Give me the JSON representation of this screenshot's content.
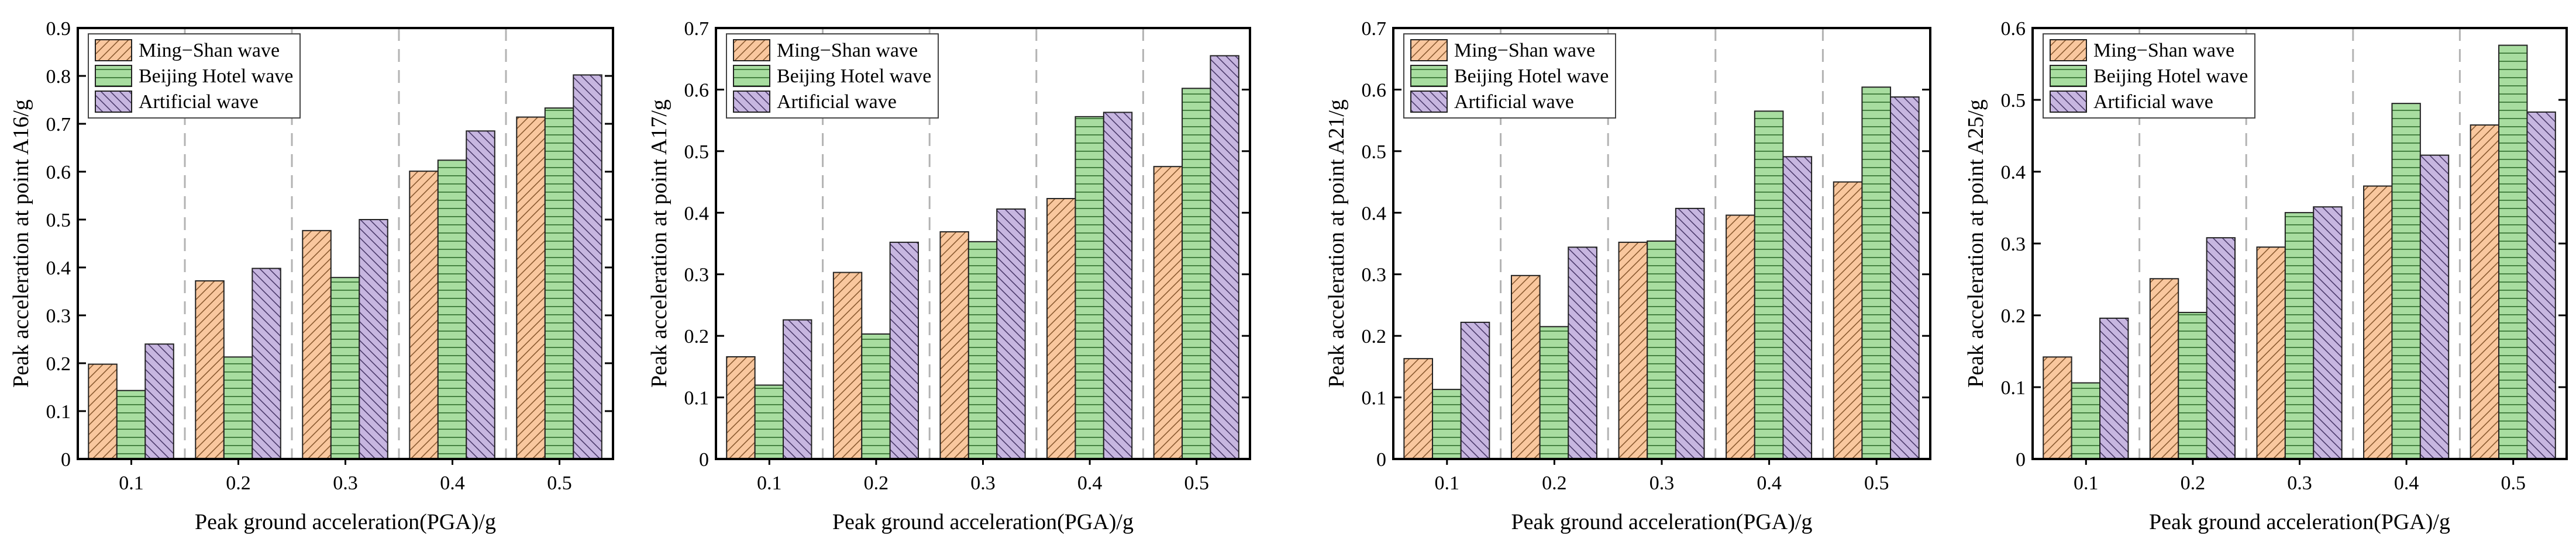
{
  "figure": {
    "description_panels": 4
  },
  "series_styles": [
    {
      "name": "Ming−Shan wave",
      "fill": "#F9C79E",
      "hatch": "diagonal-up"
    },
    {
      "name": "Beijing Hotel wave",
      "fill": "#A8DDA0",
      "hatch": "horizontal"
    },
    {
      "name": "Artificial wave",
      "fill": "#C7B6E0",
      "hatch": "diagonal-down"
    }
  ],
  "chart_data": [
    {
      "type": "bar",
      "title": "",
      "xlabel": "Peak ground acceleration(PGA)/g",
      "ylabel": "Peak acceleration at point A16/g",
      "categories": [
        "0.1",
        "0.2",
        "0.3",
        "0.4",
        "0.5"
      ],
      "ylim": [
        0,
        0.9
      ],
      "yticks": [
        "0",
        "0.1",
        "0.2",
        "0.3",
        "0.4",
        "0.5",
        "0.6",
        "0.7",
        "0.8",
        "0.9"
      ],
      "legend": "top-left",
      "series": [
        {
          "name": "Ming−Shan wave",
          "values": [
            0.198,
            0.372,
            0.477,
            0.601,
            0.714
          ]
        },
        {
          "name": "Beijing Hotel wave",
          "values": [
            0.143,
            0.213,
            0.379,
            0.624,
            0.733
          ]
        },
        {
          "name": "Artificial wave",
          "values": [
            0.24,
            0.398,
            0.5,
            0.685,
            0.802
          ]
        }
      ]
    },
    {
      "type": "bar",
      "title": "",
      "xlabel": "Peak ground acceleration(PGA)/g",
      "ylabel": "Peak acceleration at point A17/g",
      "categories": [
        "0.1",
        "0.2",
        "0.3",
        "0.4",
        "0.5"
      ],
      "ylim": [
        0,
        0.7
      ],
      "yticks": [
        "0",
        "0.1",
        "0.2",
        "0.3",
        "0.4",
        "0.5",
        "0.6",
        "0.7"
      ],
      "legend": "top-left",
      "series": [
        {
          "name": "Ming−Shan wave",
          "values": [
            0.166,
            0.303,
            0.369,
            0.423,
            0.475
          ]
        },
        {
          "name": "Beijing Hotel wave",
          "values": [
            0.12,
            0.203,
            0.353,
            0.556,
            0.602
          ]
        },
        {
          "name": "Artificial wave",
          "values": [
            0.226,
            0.352,
            0.406,
            0.563,
            0.655
          ]
        }
      ]
    },
    {
      "type": "bar",
      "title": "",
      "xlabel": "Peak ground acceleration(PGA)/g",
      "ylabel": "Peak acceleration at point A21/g",
      "categories": [
        "0.1",
        "0.2",
        "0.3",
        "0.4",
        "0.5"
      ],
      "ylim": [
        0,
        0.7
      ],
      "yticks": [
        "0",
        "0.1",
        "0.2",
        "0.3",
        "0.4",
        "0.5",
        "0.6",
        "0.7"
      ],
      "legend": "top-left",
      "series": [
        {
          "name": "Ming−Shan wave",
          "values": [
            0.163,
            0.298,
            0.352,
            0.396,
            0.45
          ]
        },
        {
          "name": "Beijing Hotel wave",
          "values": [
            0.113,
            0.215,
            0.354,
            0.565,
            0.604
          ]
        },
        {
          "name": "Artificial wave",
          "values": [
            0.222,
            0.344,
            0.407,
            0.491,
            0.588
          ]
        }
      ]
    },
    {
      "type": "bar",
      "title": "",
      "xlabel": "Peak ground acceleration(PGA)/g",
      "ylabel": "Peak acceleration at point A25/g",
      "categories": [
        "0.1",
        "0.2",
        "0.3",
        "0.4",
        "0.5"
      ],
      "ylim": [
        0,
        0.6
      ],
      "yticks": [
        "0",
        "0.1",
        "0.2",
        "0.3",
        "0.4",
        "0.5",
        "0.6"
      ],
      "legend": "top-left",
      "series": [
        {
          "name": "Ming−Shan wave",
          "values": [
            0.142,
            0.251,
            0.295,
            0.38,
            0.465
          ]
        },
        {
          "name": "Beijing Hotel wave",
          "values": [
            0.106,
            0.204,
            0.343,
            0.495,
            0.576
          ]
        },
        {
          "name": "Artificial wave",
          "values": [
            0.196,
            0.308,
            0.351,
            0.423,
            0.483
          ]
        }
      ]
    }
  ]
}
